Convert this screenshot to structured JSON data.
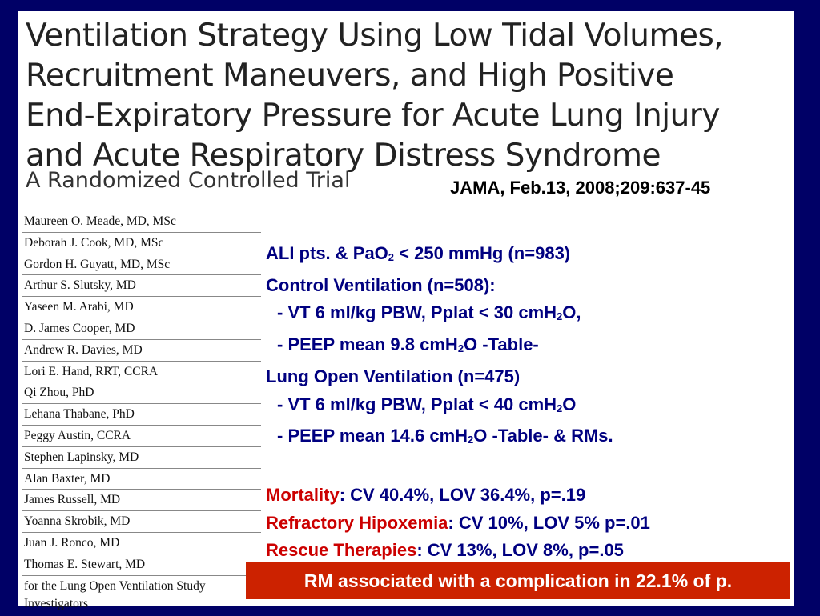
{
  "article": {
    "title_lines": [
      "Ventilation Strategy Using Low Tidal Volumes,",
      "Recruitment Maneuvers, and High Positive",
      "End-Expiratory Pressure for Acute Lung Injury",
      "and Acute Respiratory Distress Syndrome"
    ],
    "subtitle": "A Randomized Controlled Trial",
    "citation": "JAMA, Feb.13, 2008;209:637-45"
  },
  "authors": [
    "Maureen O. Meade, MD, MSc",
    "Deborah J. Cook, MD, MSc",
    "Gordon H. Guyatt, MD, MSc",
    "Arthur S. Slutsky, MD",
    "Yaseen M. Arabi, MD",
    "D. James Cooper, MD",
    "Andrew R. Davies, MD",
    "Lori E. Hand, RRT, CCRA",
    "Qi Zhou, PhD",
    "Lehana Thabane, PhD",
    "Peggy Austin, CCRA",
    "Stephen Lapinsky, MD",
    "Alan Baxter, MD",
    "James Russell, MD",
    "Yoanna Skrobik, MD",
    "Juan J. Ronco, MD",
    "Thomas E. Stewart, MD"
  ],
  "authors_footer_1": "for the Lung Open Ventilation Study",
  "authors_footer_2": "Investigators",
  "findings": {
    "pop_a": "ALI pts. & PaO",
    "pop_sub": "2",
    "pop_b": " < 250 mmHg (n=983)",
    "control_head": "Control Ventilation (n=508):",
    "control_vt_a": "- VT 6 ml/kg PBW, Pplat < 30 cmH",
    "control_vt_sub": "2",
    "control_vt_b": "O,",
    "control_peep_a": "- PEEP mean 9.8 cmH",
    "control_peep_sub": "2",
    "control_peep_b": "O -Table-",
    "lov_head": "Lung Open Ventilation (n=475)",
    "lov_vt_a": "- VT 6 ml/kg PBW, Pplat < 40 cmH",
    "lov_vt_sub": "2",
    "lov_vt_b": "O",
    "lov_peep_a": "- PEEP mean 14.6 cmH",
    "lov_peep_sub": "2",
    "lov_peep_b": "O -Table- & RMs.",
    "mortality_label": "Mortality",
    "mortality_value": ": CV 40.4%, LOV 36.4%, p=.19",
    "hypox_label": "Refractory Hipoxemia",
    "hypox_value": ": CV 10%, LOV 5% p=.01",
    "rescue_label": "Rescue Therapies",
    "rescue_value": ": CV 13%, LOV 8%, p=.05"
  },
  "callout": "RM associated with a complication in 22.1% of p.",
  "colors": {
    "background": "#000066",
    "body_text": "#000080",
    "highlight_text": "#cc0000",
    "callout_bg": "#cc2200"
  }
}
